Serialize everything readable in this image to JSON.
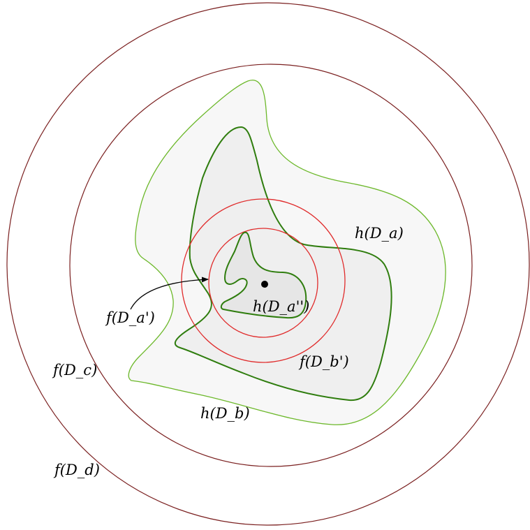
{
  "colors": {
    "outer_circles": "#7a1f1f",
    "inner_circles": "#e02b2b",
    "light_green_curve": "#6cb82a",
    "dark_green_curve": "#2f7d0e",
    "fill_outer": "#f7f7f7",
    "fill_middle": "#efefef",
    "fill_inner": "#e6e6e6",
    "text": "#000000",
    "point": "#000000"
  },
  "labels": {
    "h_Da": "h(D_a)",
    "h_Db": "h(D_b)",
    "h_Da2": "h(D_a'')",
    "f_Da1": "f(D_a')",
    "f_Db1": "f(D_b')",
    "f_Dc": "f(D_c)",
    "f_Dd": "f(D_d)"
  },
  "icons": {
    "center_point": "filled-dot",
    "arrow": "curved-arrow"
  }
}
